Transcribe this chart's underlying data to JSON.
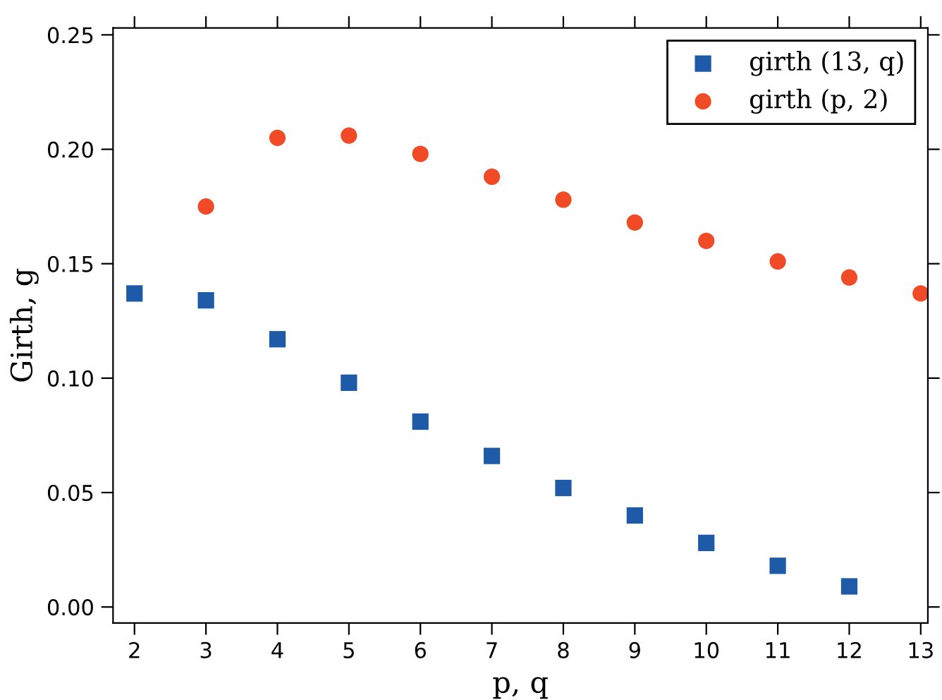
{
  "chart_data": {
    "type": "scatter",
    "xlabel": "p, q",
    "ylabel": "Girth, g",
    "xlim": [
      1.7,
      13.1
    ],
    "ylim": [
      -0.007,
      0.253
    ],
    "xticks": [
      2,
      3,
      4,
      5,
      6,
      7,
      8,
      9,
      10,
      11,
      12,
      13
    ],
    "yticks": [
      {
        "value": 0,
        "label": "0.00"
      },
      {
        "value": 0.05,
        "label": "0.05"
      },
      {
        "value": 0.1,
        "label": "0.10"
      },
      {
        "value": 0.15,
        "label": "0.15"
      },
      {
        "value": 0.2,
        "label": "0.20"
      },
      {
        "value": 0.25,
        "label": "0.25"
      }
    ],
    "grid": false,
    "legend": "top right",
    "series": [
      {
        "name": "girth (13, q)",
        "color": "#1f5aa8",
        "marker": "square",
        "x": [
          2,
          3,
          4,
          5,
          6,
          7,
          8,
          9,
          10,
          11,
          12
        ],
        "values": [
          0.137,
          0.134,
          0.117,
          0.098,
          0.081,
          0.066,
          0.052,
          0.04,
          0.028,
          0.018,
          0.009
        ]
      },
      {
        "name": "girth (p, 2)",
        "color": "#f04a26",
        "marker": "circle",
        "x": [
          3,
          4,
          5,
          6,
          7,
          8,
          9,
          10,
          11,
          12,
          13
        ],
        "values": [
          0.175,
          0.205,
          0.206,
          0.198,
          0.188,
          0.178,
          0.168,
          0.16,
          0.151,
          0.144,
          0.137
        ]
      }
    ]
  }
}
